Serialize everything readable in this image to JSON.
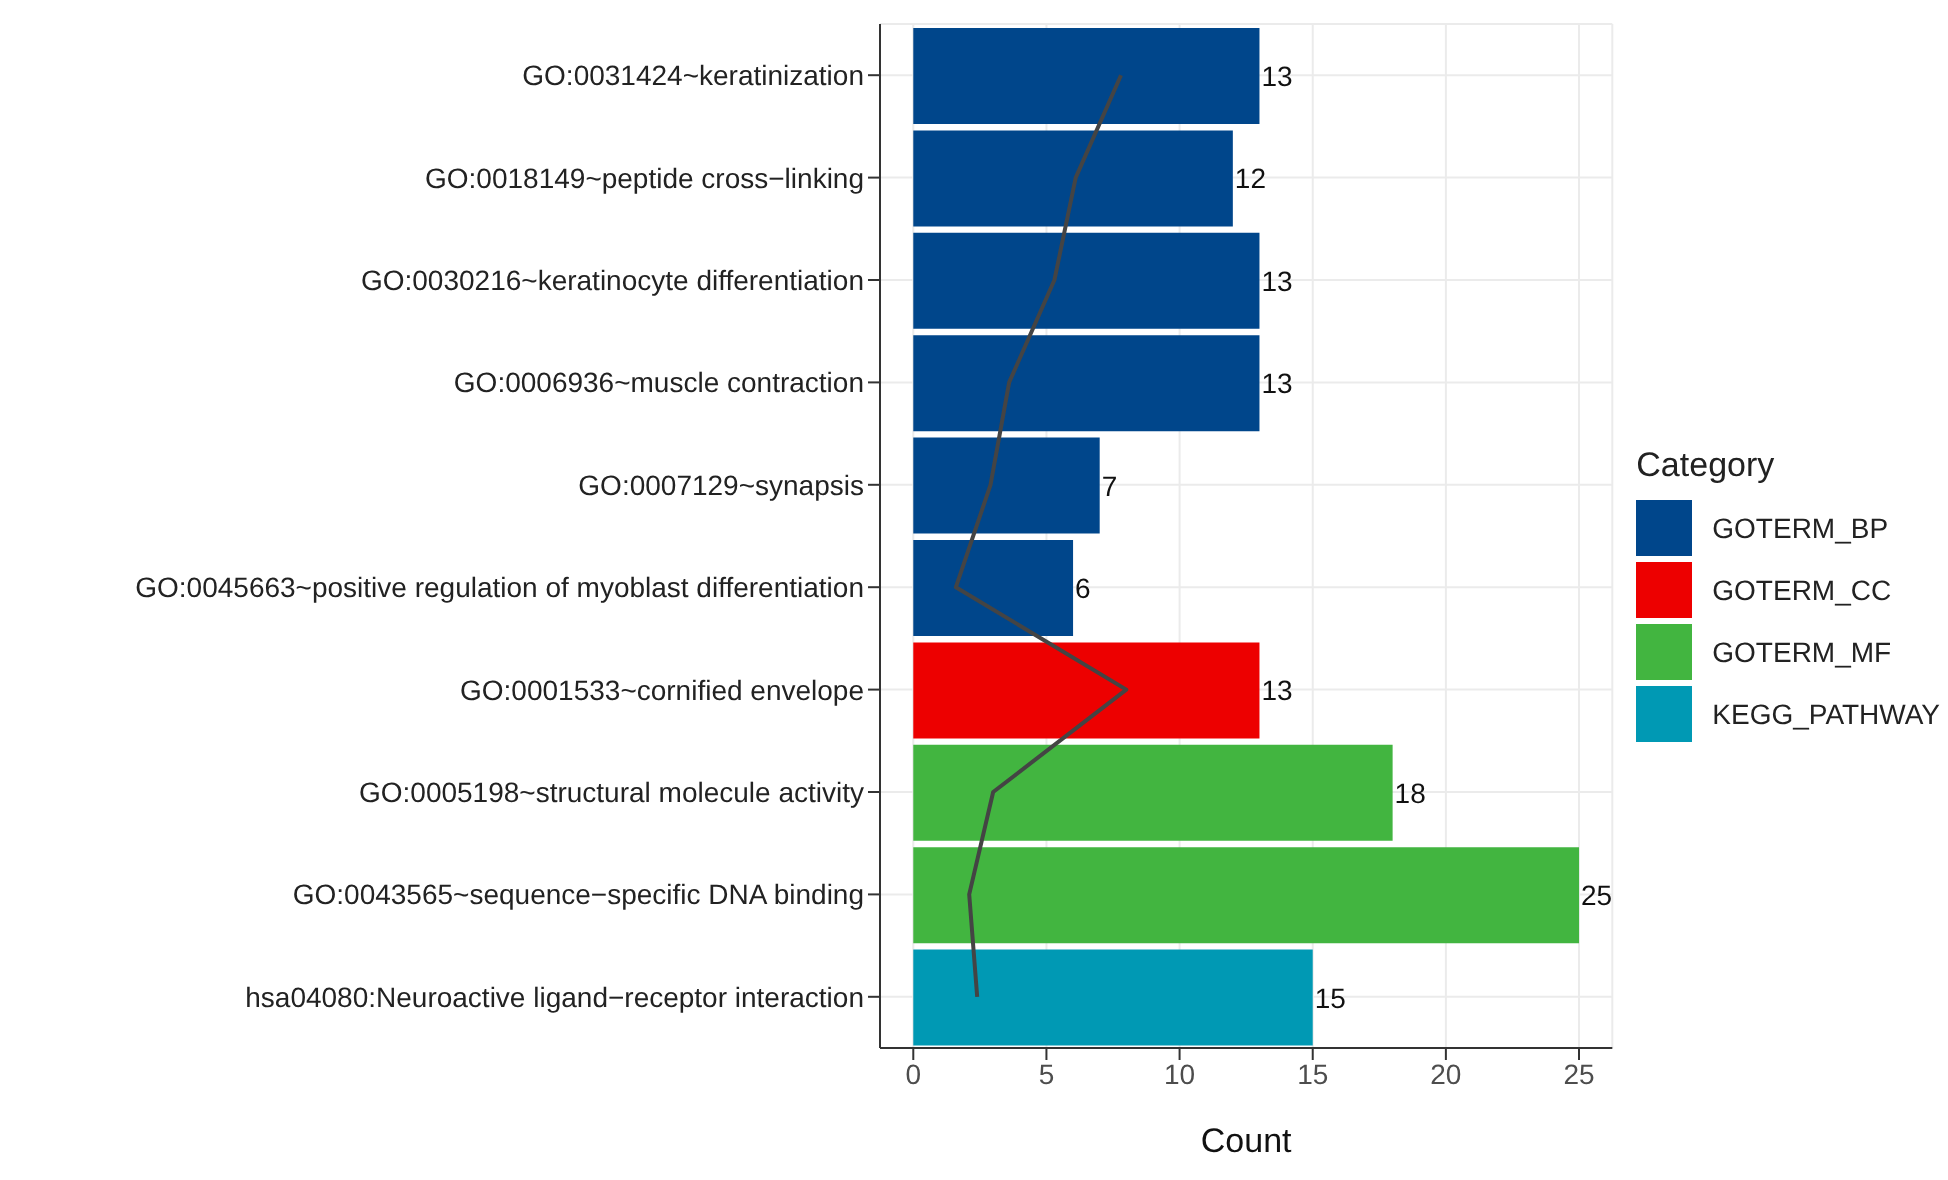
{
  "chart_data": {
    "type": "bar",
    "orientation": "horizontal",
    "stacked": true,
    "xlabel": "Count",
    "legend_title": "Category",
    "legend": "right",
    "grid": true,
    "categories": [
      "GO:0031424~keratinization",
      "GO:0018149~peptide cross−linking",
      "GO:0030216~keratinocyte differentiation",
      "GO:0006936~muscle contraction",
      "GO:0007129~synapsis",
      "GO:0045663~positive regulation of myoblast differentiation",
      "GO:0001533~cornified envelope",
      "GO:0005198~structural molecule activity",
      "GO:0043565~sequence−specific DNA binding",
      "hsa04080:Neuroactive ligand−receptor interaction"
    ],
    "xlim": [
      -1.25,
      26.25
    ],
    "xticks": [
      0,
      5,
      10,
      15,
      20,
      25
    ],
    "series": [
      {
        "name": "GOTERM_BP",
        "color": "#00468b",
        "values": [
          13,
          12,
          13,
          13,
          7,
          6,
          null,
          null,
          null,
          null
        ],
        "value_labels": [
          "13",
          "12",
          "13",
          "13",
          "7",
          "6",
          null,
          null,
          null,
          null
        ]
      },
      {
        "name": "GOTERM_CC",
        "color": "#ed0000",
        "values": [
          null,
          null,
          null,
          null,
          null,
          null,
          13,
          null,
          null,
          null
        ],
        "value_labels": [
          null,
          null,
          null,
          null,
          null,
          null,
          "13",
          null,
          null,
          null
        ]
      },
      {
        "name": "GOTERM_MF",
        "color": "#42b540",
        "values": [
          null,
          null,
          null,
          null,
          null,
          null,
          null,
          18,
          25,
          null
        ],
        "value_labels": [
          null,
          null,
          null,
          null,
          null,
          null,
          null,
          "18",
          "25",
          null
        ]
      },
      {
        "name": "KEGG_PATHWAY",
        "color": "#0099b4",
        "values": [
          null,
          null,
          null,
          null,
          null,
          null,
          null,
          null,
          null,
          15
        ],
        "value_labels": [
          null,
          null,
          null,
          null,
          null,
          null,
          null,
          null,
          null,
          "15"
        ]
      },
      {
        "type": "line",
        "color": "#444444",
        "marker": "none",
        "line_style": "solid",
        "values": [
          7.8,
          6.1,
          5.3,
          3.6,
          2.9,
          1.6,
          8.0,
          3.0,
          2.1,
          2.4
        ]
      }
    ]
  }
}
